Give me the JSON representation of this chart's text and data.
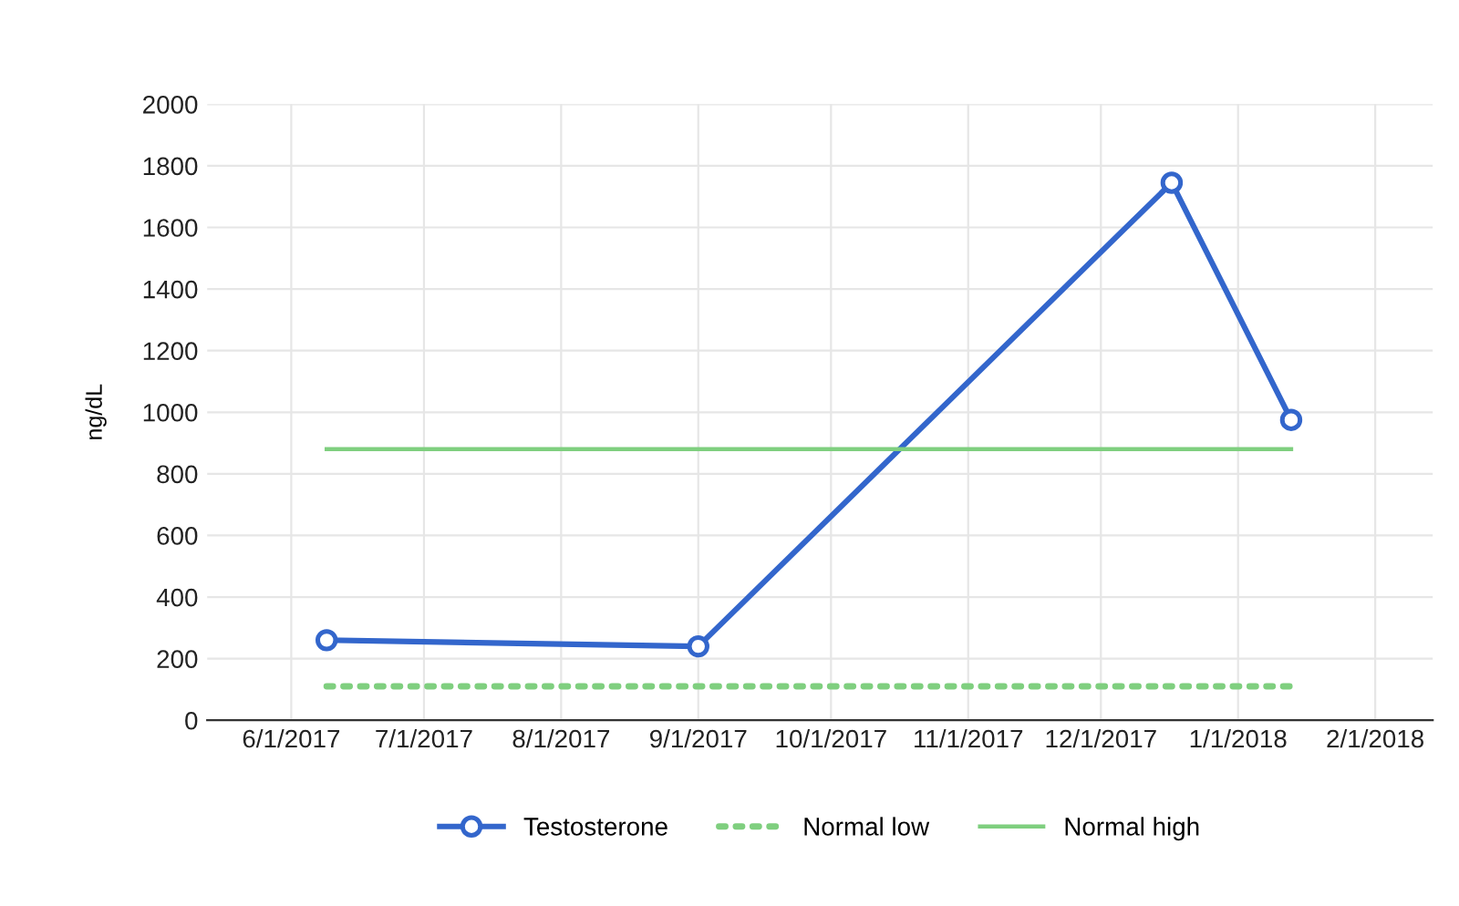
{
  "chart_data": {
    "type": "line",
    "ylabel": "ng/dL",
    "x": [
      "2017-06-09",
      "2017-09-01",
      "2017-12-17",
      "2018-01-13"
    ],
    "series": [
      {
        "name": "Testosterone",
        "color": "#3366cc",
        "marker": "circle",
        "line_style": "solid",
        "values": [
          260,
          240,
          1745,
          975
        ]
      },
      {
        "name": "Normal low",
        "color": "#7fcf7f",
        "marker": "none",
        "line_style": "dotted",
        "values": [
          110,
          110,
          110,
          110
        ]
      },
      {
        "name": "Normal high",
        "color": "#7fcf7f",
        "marker": "none",
        "line_style": "solid",
        "values": [
          880,
          880,
          880,
          880
        ]
      }
    ],
    "xlim": [
      "2017-05-13",
      "2018-02-14"
    ],
    "xticks": [
      {
        "value": "2017-06-01",
        "label": "6/1/2017"
      },
      {
        "value": "2017-07-01",
        "label": "7/1/2017"
      },
      {
        "value": "2017-08-01",
        "label": "8/1/2017"
      },
      {
        "value": "2017-09-01",
        "label": "9/1/2017"
      },
      {
        "value": "2017-10-01",
        "label": "10/1/2017"
      },
      {
        "value": "2017-11-01",
        "label": "11/1/2017"
      },
      {
        "value": "2017-12-01",
        "label": "12/1/2017"
      },
      {
        "value": "2018-01-01",
        "label": "1/1/2018"
      },
      {
        "value": "2018-02-01",
        "label": "2/1/2018"
      }
    ],
    "ylim": [
      0,
      2000
    ],
    "yticks": [
      0,
      200,
      400,
      600,
      800,
      1000,
      1200,
      1400,
      1600,
      1800,
      2000
    ],
    "grid": true,
    "legend": "bottom"
  }
}
